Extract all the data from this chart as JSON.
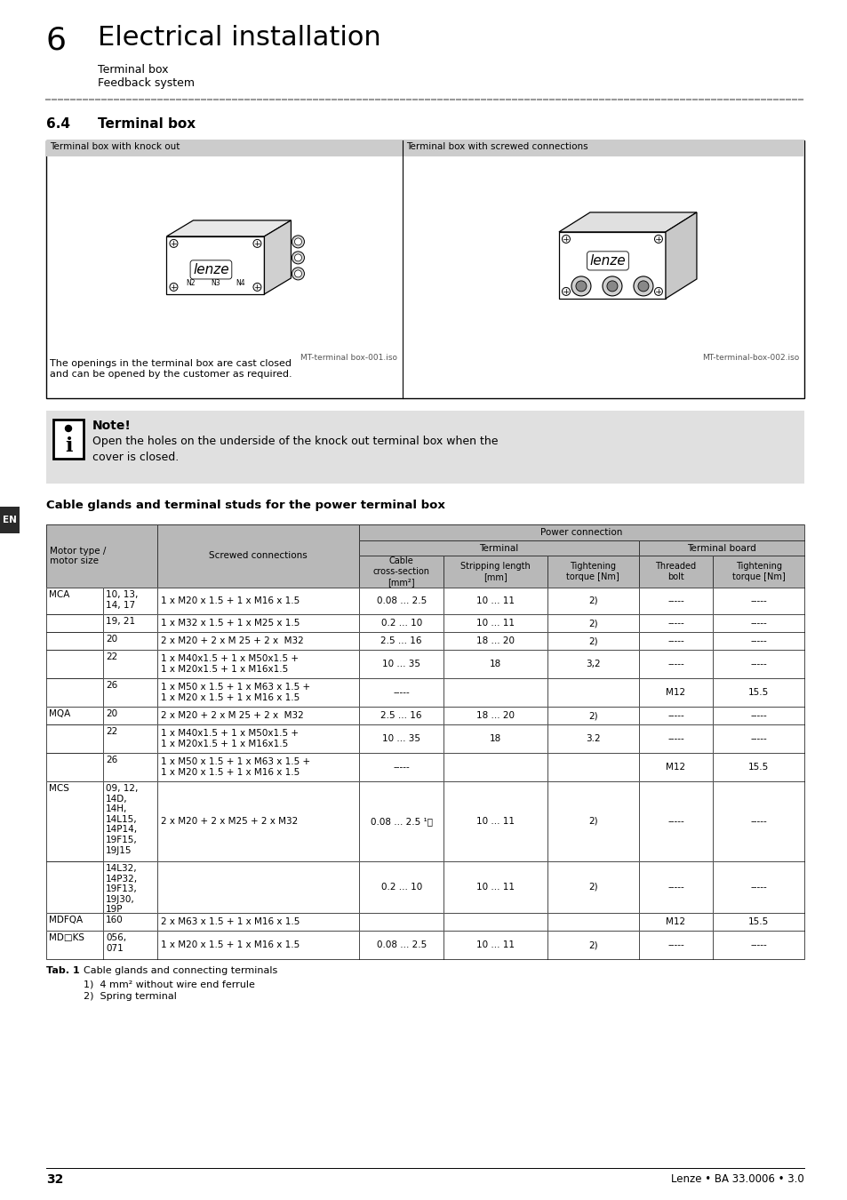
{
  "page_title_num": "6",
  "page_title": "Electrical installation",
  "subtitle1": "Terminal box",
  "subtitle2": "Feedback system",
  "section_num": "6.4",
  "section_title": "Terminal box",
  "image_caption_left": "Terminal box with knock out",
  "image_caption_right": "Terminal box with screwed connections",
  "image_file_left": "MT-terminal box-001.iso",
  "image_file_right": "MT-terminal-box-002.iso",
  "image_text_left": "The openings in the terminal box are cast closed\nand can be opened by the customer as required.",
  "note_title": "Note!",
  "note_text": "Open the holes on the underside of the knock out terminal box when the\ncover is closed.",
  "table_title": "Cable glands and terminal studs for the power terminal box",
  "tab_label": "Tab. 1",
  "tab_caption": "Cable glands and connecting terminals",
  "footnote1": "1)  4 mm² without wire end ferrule",
  "footnote2": "2)  Spring terminal",
  "page_num": "32",
  "page_footer": "Lenze • BA 33.0006 • 3.0",
  "en_label": "EN",
  "table_data": [
    [
      "MCA",
      "10, 13,\n14, 17",
      "1 x M20 x 1.5 + 1 x M16 x 1.5",
      "0.08 ... 2.5",
      "10 ... 11",
      "2)",
      "-----",
      "-----"
    ],
    [
      "",
      "19, 21",
      "1 x M32 x 1.5 + 1 x M25 x 1.5",
      "0.2 ... 10",
      "10 ... 11",
      "2)",
      "-----",
      "-----"
    ],
    [
      "",
      "20",
      "2 x M20 + 2 x M 25 + 2 x  M32",
      "2.5 ... 16",
      "18 ... 20",
      "2)",
      "-----",
      "-----"
    ],
    [
      "",
      "22",
      "1 x M40x1.5 + 1 x M50x1.5 +\n1 x M20x1.5 + 1 x M16x1.5",
      "10 ... 35",
      "18",
      "3,2",
      "-----",
      "-----"
    ],
    [
      "",
      "26",
      "1 x M50 x 1.5 + 1 x M63 x 1.5 +\n1 x M20 x 1.5 + 1 x M16 x 1.5",
      "-----",
      "",
      "",
      "M12",
      "15.5"
    ],
    [
      "MQA",
      "20",
      "2 x M20 + 2 x M 25 + 2 x  M32",
      "2.5 ... 16",
      "18 ... 20",
      "2)",
      "-----",
      "-----"
    ],
    [
      "",
      "22",
      "1 x M40x1.5 + 1 x M50x1.5 +\n1 x M20x1.5 + 1 x M16x1.5",
      "10 ... 35",
      "18",
      "3.2",
      "-----",
      "-----"
    ],
    [
      "",
      "26",
      "1 x M50 x 1.5 + 1 x M63 x 1.5 +\n1 x M20 x 1.5 + 1 x M16 x 1.5",
      "-----",
      "",
      "",
      "M12",
      "15.5"
    ],
    [
      "MCS",
      "09, 12,\n14D,\n14H,\n14L15,\n14P14,\n19F15,\n19J15",
      "2 x M20 + 2 x M25 + 2 x M32",
      "0.08 ... 2.5 ¹⧉",
      "10 ... 11",
      "2)",
      "-----",
      "-----"
    ],
    [
      "",
      "14L32,\n14P32,\n19F13,\n19J30,\n19P",
      "",
      "0.2 ... 10",
      "10 ... 11",
      "2)",
      "-----",
      "-----"
    ],
    [
      "MDFQA",
      "160",
      "2 x M63 x 1.5 + 1 x M16 x 1.5",
      "",
      "",
      "",
      "M12",
      "15.5"
    ],
    [
      "MD□KS",
      "056,\n071",
      "1 x M20 x 1.5 + 1 x M16 x 1.5",
      "0.08 ... 2.5",
      "10 ... 11",
      "2)",
      "-----",
      "-----"
    ]
  ],
  "data_row_heights": [
    30,
    20,
    20,
    32,
    32,
    20,
    32,
    32,
    90,
    58,
    20,
    32
  ],
  "header_bg": "#b8b8b8",
  "white_bg": "#ffffff",
  "gray_bg": "#e0e0e0",
  "note_bg": "#e0e0e0",
  "en_bg": "#2a2a2a"
}
